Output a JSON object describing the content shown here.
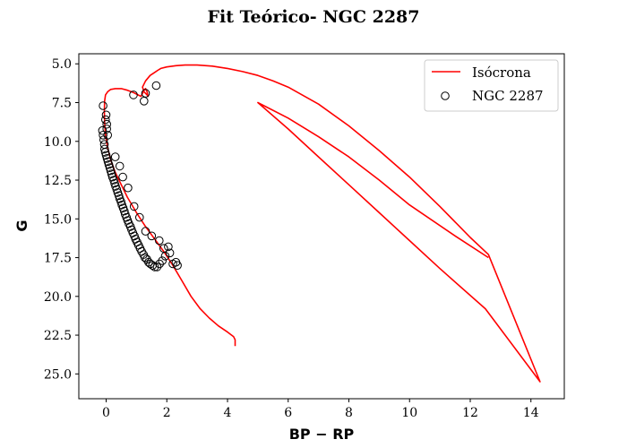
{
  "chart_data": {
    "type": "scatter",
    "title": "Fit Teórico- NGC 2287",
    "xlabel": "BP − RP",
    "ylabel": "G",
    "xlim": [
      -0.9,
      15.1
    ],
    "ylim": [
      26.6,
      4.35
    ],
    "y_inverted": true,
    "grid": false,
    "legend": "top-right",
    "xticks": [
      0,
      2,
      4,
      6,
      8,
      10,
      12,
      14
    ],
    "xtick_labels": [
      "0",
      "2",
      "4",
      "6",
      "8",
      "10",
      "12",
      "14"
    ],
    "yticks": [
      5,
      7.5,
      10,
      12.5,
      15,
      17.5,
      20,
      22.5,
      25
    ],
    "ytick_labels": [
      "5.0",
      "7.5",
      "10.0",
      "12.5",
      "15.0",
      "17.5",
      "20.0",
      "22.5",
      "25.0"
    ],
    "series": [
      {
        "name": "Isócrona",
        "kind": "line",
        "color": "#ff0000",
        "x": [
          4.25,
          4.25,
          4.2,
          4.0,
          3.7,
          3.4,
          3.1,
          2.8,
          2.5,
          2.2,
          1.9,
          1.6,
          1.3,
          1.0,
          0.7,
          0.5,
          0.3,
          0.15,
          0.05,
          -0.02,
          -0.05,
          -0.06,
          -0.05,
          -0.02,
          0.05,
          0.15,
          0.3,
          0.5,
          0.7,
          0.9,
          1.05,
          1.15,
          1.2,
          1.25,
          1.3,
          1.35,
          1.38,
          1.35,
          1.25,
          1.2,
          1.3,
          1.45,
          1.6,
          1.7,
          1.8,
          2.0,
          2.3,
          2.6,
          3.0,
          3.5,
          4.0,
          4.5,
          5.0,
          5.5,
          6.0,
          7.0,
          8.0,
          9.0,
          10.0,
          11.0,
          12.0,
          12.6,
          14.3,
          12.5,
          11.0,
          10.0,
          9.0,
          8.0,
          7.0,
          6.0,
          5.0,
          6.0,
          7.0,
          8.0,
          9.0,
          10.0,
          11.5,
          12.6
        ],
        "y": [
          23.2,
          22.8,
          22.6,
          22.3,
          21.9,
          21.4,
          20.8,
          20.0,
          19.0,
          18.0,
          17.1,
          16.3,
          15.5,
          14.6,
          13.6,
          12.8,
          12.0,
          11.2,
          10.4,
          9.6,
          8.8,
          8.0,
          7.4,
          7.0,
          6.8,
          6.65,
          6.6,
          6.6,
          6.7,
          6.85,
          7.0,
          7.1,
          6.9,
          6.7,
          6.6,
          6.8,
          7.1,
          7.0,
          6.8,
          6.5,
          6.1,
          5.75,
          5.55,
          5.42,
          5.3,
          5.2,
          5.12,
          5.08,
          5.08,
          5.15,
          5.3,
          5.5,
          5.75,
          6.1,
          6.5,
          7.6,
          9.0,
          10.6,
          12.3,
          14.2,
          16.2,
          17.3,
          25.5,
          20.8,
          18.2,
          16.4,
          14.6,
          12.8,
          11.0,
          9.2,
          7.5,
          8.5,
          9.7,
          11.0,
          12.5,
          14.1,
          16.1,
          17.5
        ]
      },
      {
        "name": "NGC 2287",
        "kind": "scatter",
        "color": "#000000",
        "x": [
          -0.12,
          -0.1,
          -0.08,
          -0.06,
          -0.05,
          -0.03,
          0.0,
          0.03,
          0.06,
          0.09,
          0.12,
          0.15,
          0.18,
          0.21,
          0.25,
          0.28,
          0.31,
          0.35,
          0.38,
          0.42,
          0.45,
          0.49,
          0.52,
          0.56,
          0.6,
          0.63,
          0.67,
          0.71,
          0.75,
          0.8,
          0.84,
          0.88,
          0.93,
          0.97,
          1.02,
          1.07,
          1.12,
          1.17,
          1.23,
          1.28,
          1.34,
          1.4,
          1.46,
          1.53,
          1.6,
          1.68,
          1.76,
          1.85,
          1.95,
          2.05,
          2.2,
          2.35,
          0.0,
          0.02,
          0.05,
          0.3,
          0.45,
          0.55,
          0.72,
          0.92,
          1.1,
          1.3,
          1.5,
          1.75,
          1.9,
          2.1,
          2.3,
          0.9,
          1.25,
          1.3,
          1.65,
          -0.1,
          -0.02,
          0.02
        ],
        "y": [
          9.3,
          9.6,
          9.9,
          10.2,
          10.5,
          10.7,
          10.9,
          11.1,
          11.3,
          11.5,
          11.7,
          11.9,
          12.1,
          12.3,
          12.5,
          12.7,
          12.9,
          13.1,
          13.3,
          13.5,
          13.7,
          13.9,
          14.1,
          14.3,
          14.5,
          14.7,
          14.9,
          15.1,
          15.3,
          15.5,
          15.7,
          15.9,
          16.1,
          16.3,
          16.5,
          16.7,
          16.9,
          17.1,
          17.3,
          17.5,
          17.6,
          17.8,
          17.9,
          18.0,
          18.1,
          18.1,
          17.9,
          17.7,
          17.4,
          16.8,
          17.9,
          18.0,
          8.3,
          8.9,
          9.6,
          11.0,
          11.6,
          12.3,
          13.0,
          14.2,
          14.9,
          15.8,
          16.1,
          16.4,
          16.9,
          17.2,
          17.8,
          7.0,
          7.4,
          6.9,
          6.4,
          7.7,
          8.6,
          9.2
        ]
      }
    ]
  }
}
